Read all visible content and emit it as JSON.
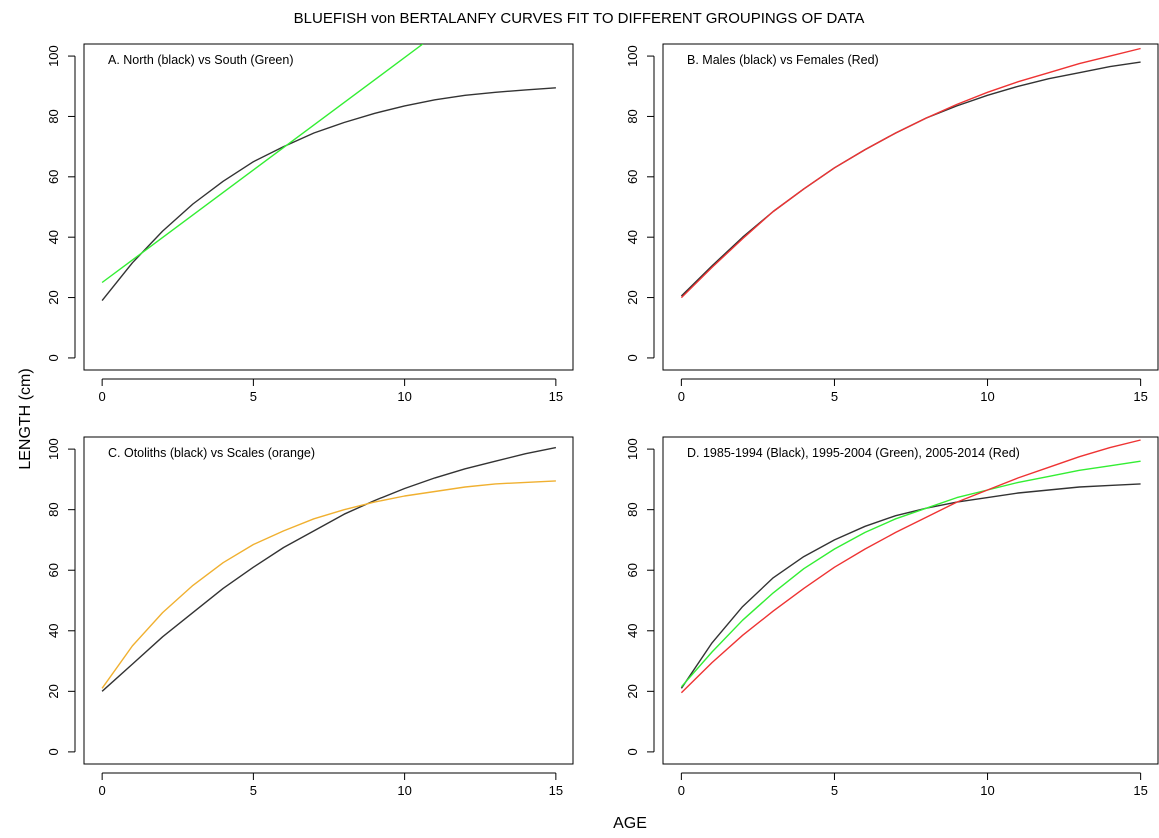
{
  "title": "BLUEFISH von BERTALANFY CURVES FIT TO DIFFERENT GROUPINGS OF DATA",
  "xlabel": "AGE",
  "ylabel": "LENGTH (cm)",
  "chart_data": [
    {
      "type": "line",
      "panel_label": "A. North (black) vs South (Green)",
      "xlim": [
        -0.6,
        15.6
      ],
      "ylim": [
        -4,
        104
      ],
      "x_ticks": [
        "0",
        "5",
        "10",
        "15"
      ],
      "y_ticks": [
        "0",
        "20",
        "40",
        "60",
        "80",
        "100"
      ],
      "series": [
        {
          "color": "#333333",
          "x": [
            0,
            1,
            2,
            3,
            4,
            5,
            6,
            7,
            8,
            9,
            10,
            11,
            12,
            13,
            14,
            15
          ],
          "y": [
            19,
            31.5,
            42,
            51,
            58.5,
            65,
            70,
            74.5,
            78,
            81,
            83.5,
            85.5,
            87,
            88,
            88.8,
            89.5
          ]
        },
        {
          "color": "#33ee33",
          "x": [
            0,
            10.6
          ],
          "y": [
            25,
            104
          ]
        }
      ]
    },
    {
      "type": "line",
      "panel_label": "B. Males (black) vs Females (Red)",
      "xlim": [
        -0.6,
        15.6
      ],
      "ylim": [
        -4,
        104
      ],
      "x_ticks": [
        "0",
        "5",
        "10",
        "15"
      ],
      "y_ticks": [
        "0",
        "20",
        "40",
        "60",
        "80",
        "100"
      ],
      "series": [
        {
          "color": "#333333",
          "x": [
            0,
            1,
            2,
            3,
            4,
            5,
            6,
            7,
            8,
            9,
            10,
            11,
            12,
            13,
            14,
            15
          ],
          "y": [
            20.5,
            30.5,
            40,
            48.5,
            56,
            63,
            69,
            74.5,
            79.5,
            83.5,
            87,
            90,
            92.5,
            94.5,
            96.5,
            98
          ]
        },
        {
          "color": "#ee3333",
          "x": [
            0,
            1,
            2,
            3,
            4,
            5,
            6,
            7,
            8,
            9,
            10,
            11,
            12,
            13,
            14,
            15
          ],
          "y": [
            20,
            30,
            39.5,
            48.5,
            56,
            63,
            69,
            74.5,
            79.5,
            84,
            88,
            91.5,
            94.5,
            97.5,
            100,
            102.5
          ]
        }
      ]
    },
    {
      "type": "line",
      "panel_label": "C. Otoliths (black) vs Scales (orange)",
      "xlim": [
        -0.6,
        15.6
      ],
      "ylim": [
        -4,
        104
      ],
      "x_ticks": [
        "0",
        "5",
        "10",
        "15"
      ],
      "y_ticks": [
        "0",
        "20",
        "40",
        "60",
        "80",
        "100"
      ],
      "series": [
        {
          "color": "#333333",
          "x": [
            0,
            1,
            2,
            3,
            4,
            5,
            6,
            7,
            8,
            9,
            10,
            11,
            12,
            13,
            14,
            15
          ],
          "y": [
            20,
            29,
            38,
            46,
            54,
            61,
            67.5,
            73,
            78.5,
            83,
            87,
            90.5,
            93.5,
            96,
            98.5,
            100.5
          ]
        },
        {
          "color": "#f0b030",
          "x": [
            0,
            1,
            2,
            3,
            4,
            5,
            6,
            7,
            8,
            9,
            10,
            11,
            12,
            13,
            14,
            15
          ],
          "y": [
            21,
            35,
            46,
            55,
            62.5,
            68.5,
            73,
            77,
            80,
            82.5,
            84.5,
            86,
            87.5,
            88.5,
            89,
            89.5
          ]
        }
      ]
    },
    {
      "type": "line",
      "panel_label": "D. 1985-1994 (Black), 1995-2004 (Green), 2005-2014 (Red)",
      "xlim": [
        -0.6,
        15.6
      ],
      "ylim": [
        -4,
        104
      ],
      "x_ticks": [
        "0",
        "5",
        "10",
        "15"
      ],
      "y_ticks": [
        "0",
        "20",
        "40",
        "60",
        "80",
        "100"
      ],
      "series": [
        {
          "color": "#333333",
          "x": [
            0,
            1,
            2,
            3,
            4,
            5,
            6,
            7,
            8,
            9,
            10,
            11,
            12,
            13,
            14,
            15
          ],
          "y": [
            21,
            36,
            48,
            57.5,
            64.5,
            70,
            74.5,
            78,
            80.5,
            82.5,
            84,
            85.5,
            86.5,
            87.5,
            88,
            88.5
          ]
        },
        {
          "color": "#33ee33",
          "x": [
            0,
            1,
            2,
            3,
            4,
            5,
            6,
            7,
            8,
            9,
            10,
            11,
            12,
            13,
            14,
            15
          ],
          "y": [
            21.5,
            33,
            43.5,
            52.5,
            60.5,
            67,
            72.5,
            77,
            80.5,
            84,
            86.5,
            89,
            91,
            93,
            94.5,
            96
          ]
        },
        {
          "color": "#ee3333",
          "x": [
            0,
            1,
            2,
            3,
            4,
            5,
            6,
            7,
            8,
            9,
            10,
            11,
            12,
            13,
            14,
            15
          ],
          "y": [
            19.5,
            29.5,
            38.5,
            46.5,
            54,
            61,
            67,
            72.5,
            77.5,
            82.5,
            86.5,
            90.5,
            94,
            97.5,
            100.5,
            103
          ]
        }
      ]
    }
  ]
}
